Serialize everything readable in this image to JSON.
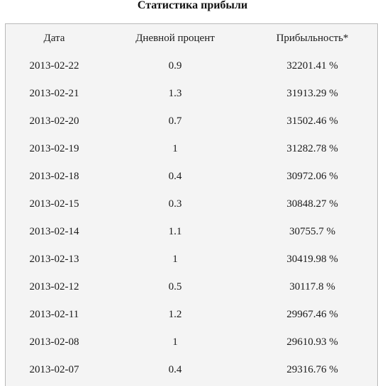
{
  "page": {
    "title": "Статистика прибыли"
  },
  "table": {
    "headers": [
      "Дата",
      "Дневной процент",
      "Прибыльность*"
    ],
    "rows": [
      {
        "date": "2013-02-22",
        "daily": "0.9",
        "profit": "32201.41 %"
      },
      {
        "date": "2013-02-21",
        "daily": "1.3",
        "profit": "31913.29 %"
      },
      {
        "date": "2013-02-20",
        "daily": "0.7",
        "profit": "31502.46 %"
      },
      {
        "date": "2013-02-19",
        "daily": "1",
        "profit": "31282.78 %"
      },
      {
        "date": "2013-02-18",
        "daily": "0.4",
        "profit": "30972.06 %"
      },
      {
        "date": "2013-02-15",
        "daily": "0.3",
        "profit": "30848.27 %"
      },
      {
        "date": "2013-02-14",
        "daily": "1.1",
        "profit": "30755.7 %"
      },
      {
        "date": "2013-02-13",
        "daily": "1",
        "profit": "30419.98 %"
      },
      {
        "date": "2013-02-12",
        "daily": "0.5",
        "profit": "30117.8 %"
      },
      {
        "date": "2013-02-11",
        "daily": "1.2",
        "profit": "29967.46 %"
      },
      {
        "date": "2013-02-08",
        "daily": "1",
        "profit": "29610.93 %"
      },
      {
        "date": "2013-02-07",
        "daily": "0.4",
        "profit": "29316.76 %"
      }
    ]
  }
}
